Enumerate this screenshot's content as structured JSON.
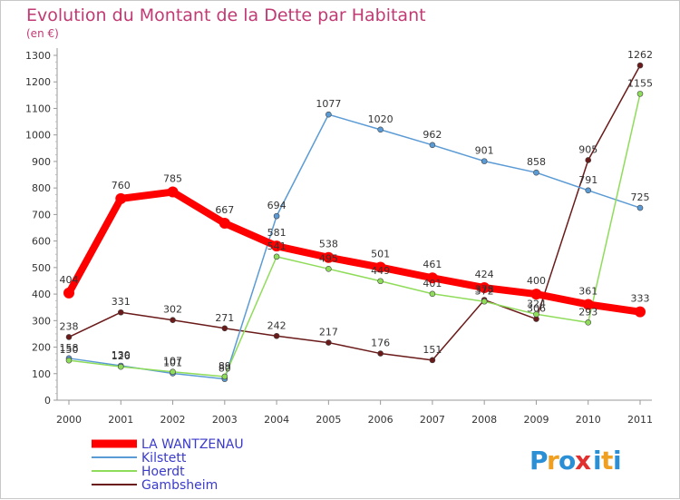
{
  "chart_data": {
    "type": "line",
    "title": "Evolution du Montant de la Dette par Habitant",
    "subtitle": "(en €)",
    "xlabel": "",
    "ylabel": "",
    "x": [
      "2000",
      "2001",
      "2002",
      "2003",
      "2004",
      "2005",
      "2006",
      "2007",
      "2008",
      "2009",
      "2010",
      "2011"
    ],
    "ylim": [
      0,
      1300
    ],
    "yticks": [
      0,
      100,
      200,
      300,
      400,
      500,
      600,
      700,
      800,
      900,
      1000,
      1100,
      1200,
      1300
    ],
    "grid": false,
    "legend_position": "bottom-left",
    "series": [
      {
        "name": "Gambsheim",
        "color": "#6b1a1a",
        "values": [
          238,
          331,
          302,
          271,
          242,
          217,
          176,
          151,
          378,
          306,
          905,
          1262
        ]
      },
      {
        "name": "Kilstett",
        "color": "#5b9bd5",
        "values": [
          158,
          130,
          101,
          80,
          694,
          1077,
          1020,
          962,
          901,
          858,
          791,
          725
        ]
      },
      {
        "name": "Hoerdt",
        "color": "#8fdc5a",
        "values": [
          150,
          126,
          107,
          89,
          541,
          495,
          449,
          401,
          372,
          324,
          293,
          1155
        ]
      },
      {
        "name": "LA WANTZENAU",
        "color": "#ff0000",
        "values": [
          404,
          760,
          785,
          667,
          581,
          538,
          501,
          461,
          424,
          400,
          361,
          333
        ]
      }
    ],
    "legend": [
      {
        "name": "LA WANTZENAU",
        "color": "#ff0000"
      },
      {
        "name": "Kilstett",
        "color": "#5b9bd5"
      },
      {
        "name": "Hoerdt",
        "color": "#8fdc5a"
      },
      {
        "name": "Gambsheim",
        "color": "#6b1a1a"
      }
    ]
  },
  "logo": {
    "text": "Proxiti",
    "letters": [
      "P",
      "r",
      "o",
      "x",
      "i",
      "t",
      "i"
    ],
    "colors": [
      "#2b8fd6",
      "#f0a020",
      "#2b8fd6",
      "#e03030",
      "#2b8fd6",
      "#f0a020",
      "#2b8fd6"
    ]
  }
}
